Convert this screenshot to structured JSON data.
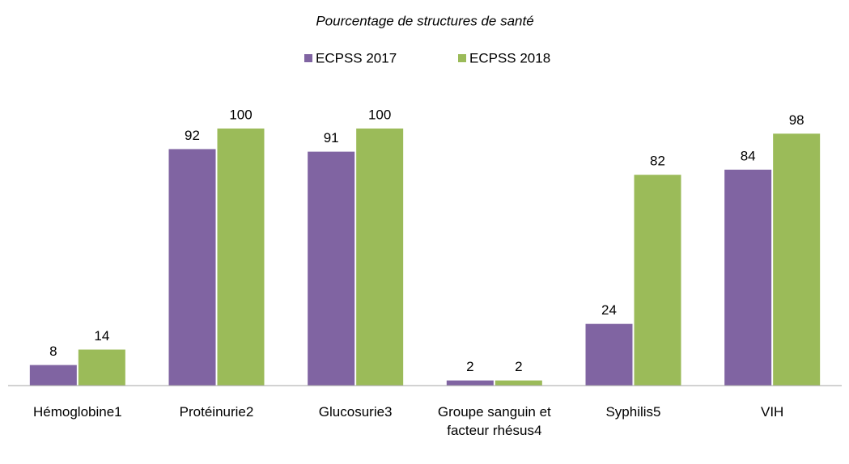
{
  "chart_data": {
    "type": "bar",
    "title": "Pourcentage de structures de santé",
    "categories": [
      "Hémoglobine1",
      "Protéinurie2",
      "Glucosurie3",
      "Groupe sanguin et facteur rhésus4",
      "Syphilis5",
      "VIH"
    ],
    "series": [
      {
        "name": "ECPSS 2017",
        "color": "#8064a2",
        "values": [
          8,
          92,
          91,
          2,
          24,
          84
        ]
      },
      {
        "name": "ECPSS 2018",
        "color": "#9bbb59",
        "values": [
          14,
          100,
          100,
          2,
          82,
          98
        ]
      }
    ],
    "ylim": [
      0,
      100
    ],
    "legend": "top"
  }
}
